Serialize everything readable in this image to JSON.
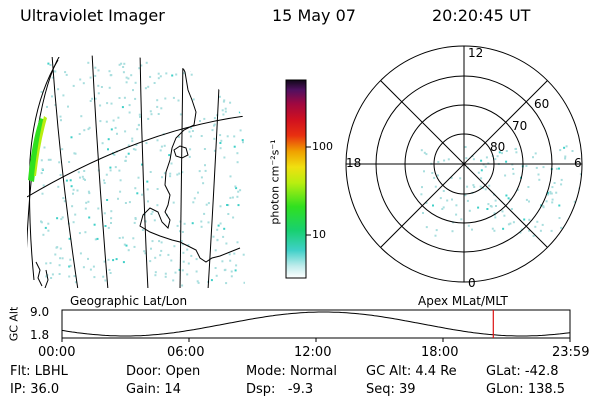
{
  "header": {
    "title": "Ultraviolet Imager",
    "date": "15 May 07",
    "time": "20:20:45 UT"
  },
  "geo_panel": {
    "label": "Geographic Lat/Lon"
  },
  "apex_panel": {
    "label": "Apex MLat/MLT"
  },
  "colorbar": {
    "unit_label": "photon cm⁻²s⁻¹",
    "ticks": [
      "100",
      "10"
    ]
  },
  "polar": {
    "mlt_labels": {
      "top": "12",
      "left": "18",
      "right": "6",
      "bottom": "0"
    },
    "lat_labels": [
      "60",
      "70",
      "80"
    ]
  },
  "altitude_plot": {
    "ylabel": "GC Alt",
    "ymax": "9.0",
    "ymin": "1.8",
    "xticks": [
      "00:00",
      "06:00",
      "12:00",
      "18:00",
      "23:59"
    ],
    "current_time_fraction": 0.849
  },
  "info": {
    "row1": [
      {
        "label": "Flt:",
        "value": "LBHL"
      },
      {
        "label": "Door:",
        "value": "Open"
      },
      {
        "label": "Mode:",
        "value": "Normal"
      },
      {
        "label": "GC Alt:",
        "value": "4.4 Re"
      },
      {
        "label": "GLat:",
        "value": "-42.8"
      }
    ],
    "row2": [
      {
        "label": "IP:",
        "value": "36.0"
      },
      {
        "label": "Gain:",
        "value": "14"
      },
      {
        "label": "Dsp:",
        "value": "-9.3"
      },
      {
        "label": "Seq:",
        "value": "39"
      },
      {
        "label": "GLon:",
        "value": "138.5"
      }
    ]
  },
  "colors": {
    "marker": "#dd1111",
    "scatter": "#a8dede"
  }
}
